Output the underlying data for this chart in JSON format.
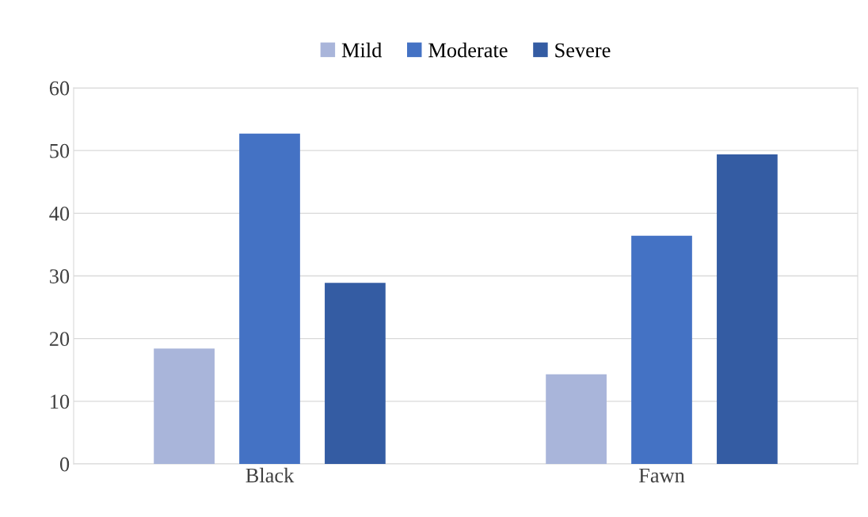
{
  "chart_data": {
    "type": "bar",
    "categories": [
      "Black",
      "Fawn"
    ],
    "series": [
      {
        "name": "Mild",
        "color": "#a9b5da",
        "values": [
          18.4,
          14.3
        ]
      },
      {
        "name": "Moderate",
        "color": "#4472c4",
        "values": [
          52.7,
          36.4
        ]
      },
      {
        "name": "Severe",
        "color": "#345ca3",
        "values": [
          28.9,
          49.4
        ]
      }
    ],
    "ylim": [
      0,
      60
    ],
    "yticks": [
      0,
      10,
      20,
      30,
      40,
      50,
      60
    ],
    "grid": "y",
    "legend": "top"
  }
}
